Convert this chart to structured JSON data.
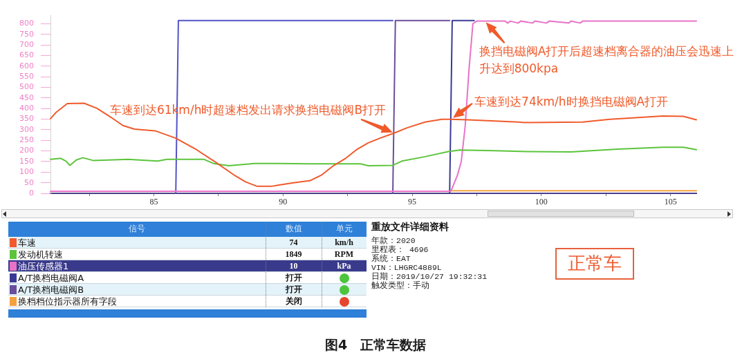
{
  "chart_data": [
    {
      "type": "line",
      "xlim": [
        81,
        106
      ],
      "xticks": [
        {
          "value": 82.5,
          "label": null
        },
        85,
        {
          "value": 87.5,
          "label": null
        },
        90,
        {
          "value": 92.5,
          "label": null
        },
        95,
        {
          "value": 97.5,
          "label": null
        },
        100,
        {
          "value": 102.5,
          "label": null
        },
        105
      ],
      "ylim": [
        0,
        840
      ],
      "yticks": [
        0,
        50,
        100,
        150,
        200,
        250,
        300,
        350,
        400,
        450,
        500,
        550,
        600,
        650,
        700,
        750,
        800
      ],
      "legend": "bottom",
      "legend_title": "信号",
      "series": [
        {
          "name": "车速",
          "color": "#f05a2c",
          "x": [
            81.0,
            81.2,
            81.65,
            82.3,
            82.8,
            83.35,
            83.8,
            84.25,
            85.05,
            85.85,
            86.65,
            87.4,
            88.1,
            88.55,
            89.0,
            89.55,
            89.8,
            90.35,
            91.05,
            91.5,
            91.95,
            92.4,
            92.85,
            93.3,
            93.75,
            94.3,
            94.8,
            95.5,
            96.15,
            96.5,
            97.15,
            98.2,
            99.1,
            99.35,
            101.6,
            102.65,
            103.85,
            104.7,
            105.5,
            106.0
          ],
          "values": [
            352,
            380,
            423,
            425,
            401,
            358,
            320,
            303,
            295,
            260,
            206,
            146,
            87,
            54,
            33,
            33,
            38,
            49,
            60,
            87,
            130,
            163,
            206,
            238,
            260,
            284,
            309,
            336,
            349,
            349,
            347,
            341,
            336,
            334,
            336,
            349,
            358,
            365,
            363,
            347
          ]
        },
        {
          "name": "发动机转速",
          "color": "#5cc43c",
          "x": [
            81.0,
            81.4,
            81.6,
            81.75,
            82.0,
            82.25,
            82.65,
            84.0,
            85.15,
            85.5,
            86.95,
            87.3,
            87.9,
            88.9,
            89.8,
            91.05,
            93.0,
            93.3,
            94.25,
            94.6,
            95.5,
            96.4,
            96.85,
            98.2,
            99.45,
            101.15,
            102.95,
            104.7,
            105.5,
            106.0
          ],
          "values": [
            160,
            165,
            152,
            132,
            157,
            168,
            155,
            160,
            152,
            160,
            160,
            141,
            130,
            141,
            141,
            139,
            139,
            130,
            132,
            152,
            173,
            197,
            204,
            201,
            197,
            195,
            208,
            217,
            217,
            206
          ]
        },
        {
          "name": "油压传感器1",
          "color": "#e872c8",
          "x": [
            81,
            96.5,
            96.75,
            96.9,
            97.05,
            97.2,
            97.35,
            97.5,
            98.6,
            98.7,
            98.8,
            99.1,
            99.2,
            99.66,
            99.75,
            100.2,
            100.3,
            101.06,
            101.15,
            101.5,
            101.6,
            106
          ],
          "values": [
            10,
            10,
            85,
            150,
            315,
            585,
            800,
            812,
            812,
            803,
            812,
            803,
            812,
            803,
            812,
            803,
            812,
            803,
            812,
            803,
            812,
            812
          ]
        },
        {
          "name": "A/T换档电磁阀A",
          "color": "#3a3a96",
          "x": [
            96.45,
            96.55,
            97.4
          ],
          "values": [
            0,
            815,
            815
          ]
        },
        {
          "name": "A/T换档电磁阀B",
          "color": "#6a4c9c",
          "x": [
            94.25,
            94.35,
            96.45
          ],
          "values": [
            0,
            815,
            815
          ]
        },
        {
          "name": "换档档位指示器所有字段",
          "color": "#f5a040",
          "x": [
            96.5,
            106
          ],
          "values": [
            12,
            12
          ]
        },
        {
          "color": "#5252c8",
          "x": [
            85.85,
            85.95,
            94.25
          ],
          "values": [
            0,
            815,
            815
          ]
        }
      ],
      "annotations": [
        {
          "text": "车速到达61km/h时超速档发出请求换挡电磁阀B打开",
          "x": 94.3,
          "y": 284
        },
        {
          "text": "车速到达74km/h时换挡电磁阀A打开",
          "x": 96.5,
          "y": 349
        },
        {
          "text": "换挡电磁阀A打开后超速档离合器的油压会迅速上升达到800kpa",
          "x": 97.8,
          "y": 810
        },
        "图4　正常车数据"
      ]
    },
    {
      "type": "other",
      "title": "数值",
      "annotations": [
        "74",
        "1849",
        "10",
        "打开",
        "打开",
        "关闭"
      ]
    },
    {
      "type": "other",
      "title": "单元",
      "annotations": [
        "km/h",
        "RPM",
        "kPa"
      ]
    },
    {
      "type": "other",
      "title": "重放文件详细资料",
      "annotations": [
        "年款：2020",
        "里程表： 4696",
        "系统：EAT",
        "VIN：LHGRC4889L",
        "日期：2019/10/27 19:32:31",
        "触发类型：手动"
      ]
    },
    {
      "type": "other",
      "annotations": [
        "正常车"
      ]
    }
  ]
}
